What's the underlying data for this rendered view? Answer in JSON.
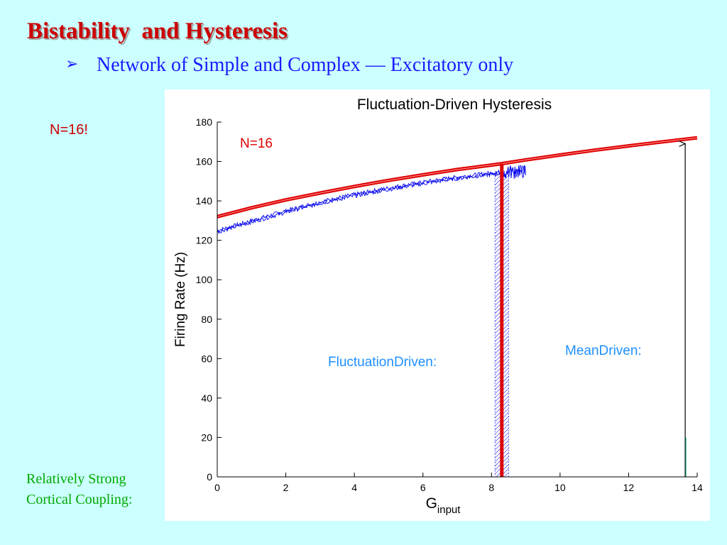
{
  "slide": {
    "title": "Bistability  and Hysteresis",
    "bullet_icon": "arrow-bullet-icon",
    "bullet": "Network of Simple and Complex — Excitatory only",
    "n_note": "N=16",
    "n_note_suffix": "!",
    "coupling_line1": "Relatively Strong",
    "coupling_line2": "Cortical Coupling:"
  },
  "colors": {
    "background": "#ccffff",
    "title": "#cc0000",
    "bullet": "#1a1aff",
    "coupling": "#00aa00",
    "red_curve": "#dd0000",
    "blue_curve": "#0000ee",
    "annotation_blue": "#1e90ff"
  },
  "chart_data": {
    "type": "line",
    "title": "Fluctuation-Driven Hysteresis",
    "xlabel": "G",
    "xlabel_subscript": "input",
    "ylabel": "Firing Rate (Hz)",
    "xlim": [
      0,
      14
    ],
    "ylim": [
      0,
      180
    ],
    "x_ticks": [
      0,
      2,
      4,
      6,
      8,
      10,
      12,
      14
    ],
    "y_ticks": [
      0,
      20,
      40,
      60,
      80,
      100,
      120,
      140,
      160,
      180
    ],
    "grid": false,
    "annotations": {
      "n_label": "N=16",
      "fluctuation_driven": "FluctuationDriven:",
      "mean_driven": "MeanDriven:"
    },
    "series": [
      {
        "style": "red-thick",
        "x": [
          0,
          1,
          2,
          3,
          4,
          5,
          6,
          7,
          8,
          8.3,
          9,
          10,
          11,
          12,
          13,
          14
        ],
        "y": [
          132,
          136.5,
          140.5,
          144,
          147.3,
          150.4,
          153.2,
          155.9,
          158.2,
          158.9,
          160.8,
          163.3,
          165.7,
          167.9,
          170.0,
          172.0
        ]
      },
      {
        "style": "blue-noisy",
        "x": [
          0,
          0.5,
          1,
          1.5,
          2,
          2.5,
          3,
          3.5,
          4,
          4.5,
          5,
          5.5,
          6,
          6.5,
          7,
          7.5,
          8,
          8.5,
          9
        ],
        "y": [
          125,
          127.5,
          130,
          132.5,
          135,
          137.3,
          139.5,
          141.5,
          143.3,
          145,
          146.6,
          148.1,
          149.5,
          150.9,
          152.1,
          153.2,
          154.2,
          155.1,
          155.8
        ]
      },
      {
        "style": "red-vertical-transition",
        "x": [
          8.3,
          8.3
        ],
        "y": [
          0,
          158.9
        ]
      },
      {
        "style": "blue-hatched-transition",
        "x": [
          8.1,
          8.5
        ],
        "y": [
          0,
          155
        ]
      },
      {
        "style": "black-arrow-mean-driven",
        "x": [
          13.65,
          13.65
        ],
        "y": [
          0,
          169
        ]
      }
    ]
  }
}
